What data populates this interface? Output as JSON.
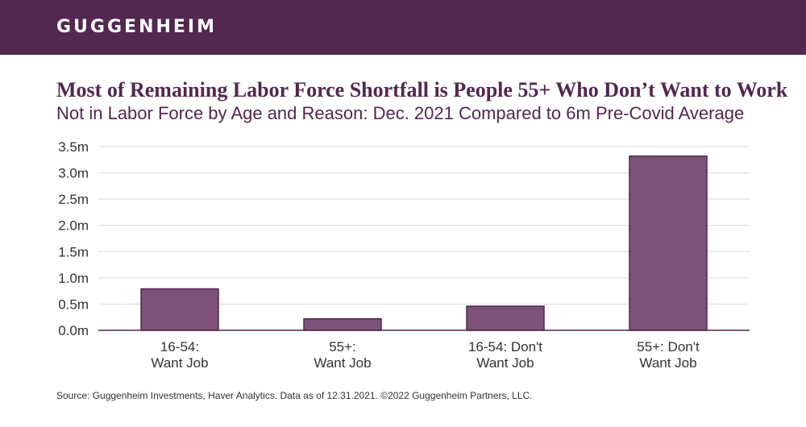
{
  "header": {
    "logo_text": "GUGGENHEIM",
    "background_color": "#52284f"
  },
  "chart_data": {
    "type": "bar",
    "title": "Most of Remaining Labor Force Shortfall is People 55+ Who Don’t Want to Work",
    "subtitle": "Not in Labor Force by Age and Reason: Dec. 2021 Compared to 6m Pre-Covid Average",
    "categories": [
      "16-54:\nWant Job",
      "55+:\nWant Job",
      "16-54: Don't\nWant Job",
      "55+: Don't\nWant Job"
    ],
    "values": [
      0.79,
      0.22,
      0.46,
      3.32
    ],
    "unit": "m",
    "ylim": [
      0,
      3.5
    ],
    "y_ticks": [
      0,
      0.5,
      1.0,
      1.5,
      2.0,
      2.5,
      3.0,
      3.5
    ],
    "y_tick_labels": [
      "0.0m",
      "0.5m",
      "1.0m",
      "1.5m",
      "2.0m",
      "2.5m",
      "3.0m",
      "3.5m"
    ],
    "grid": true,
    "bar_color": "#7c5278",
    "bar_border_color": "#52284f"
  },
  "footer": {
    "source": "Source: Guggenheim Investments, Haver Analytics. Data as of 12.31.2021. ©2022 Guggenheim Partners, LLC."
  }
}
